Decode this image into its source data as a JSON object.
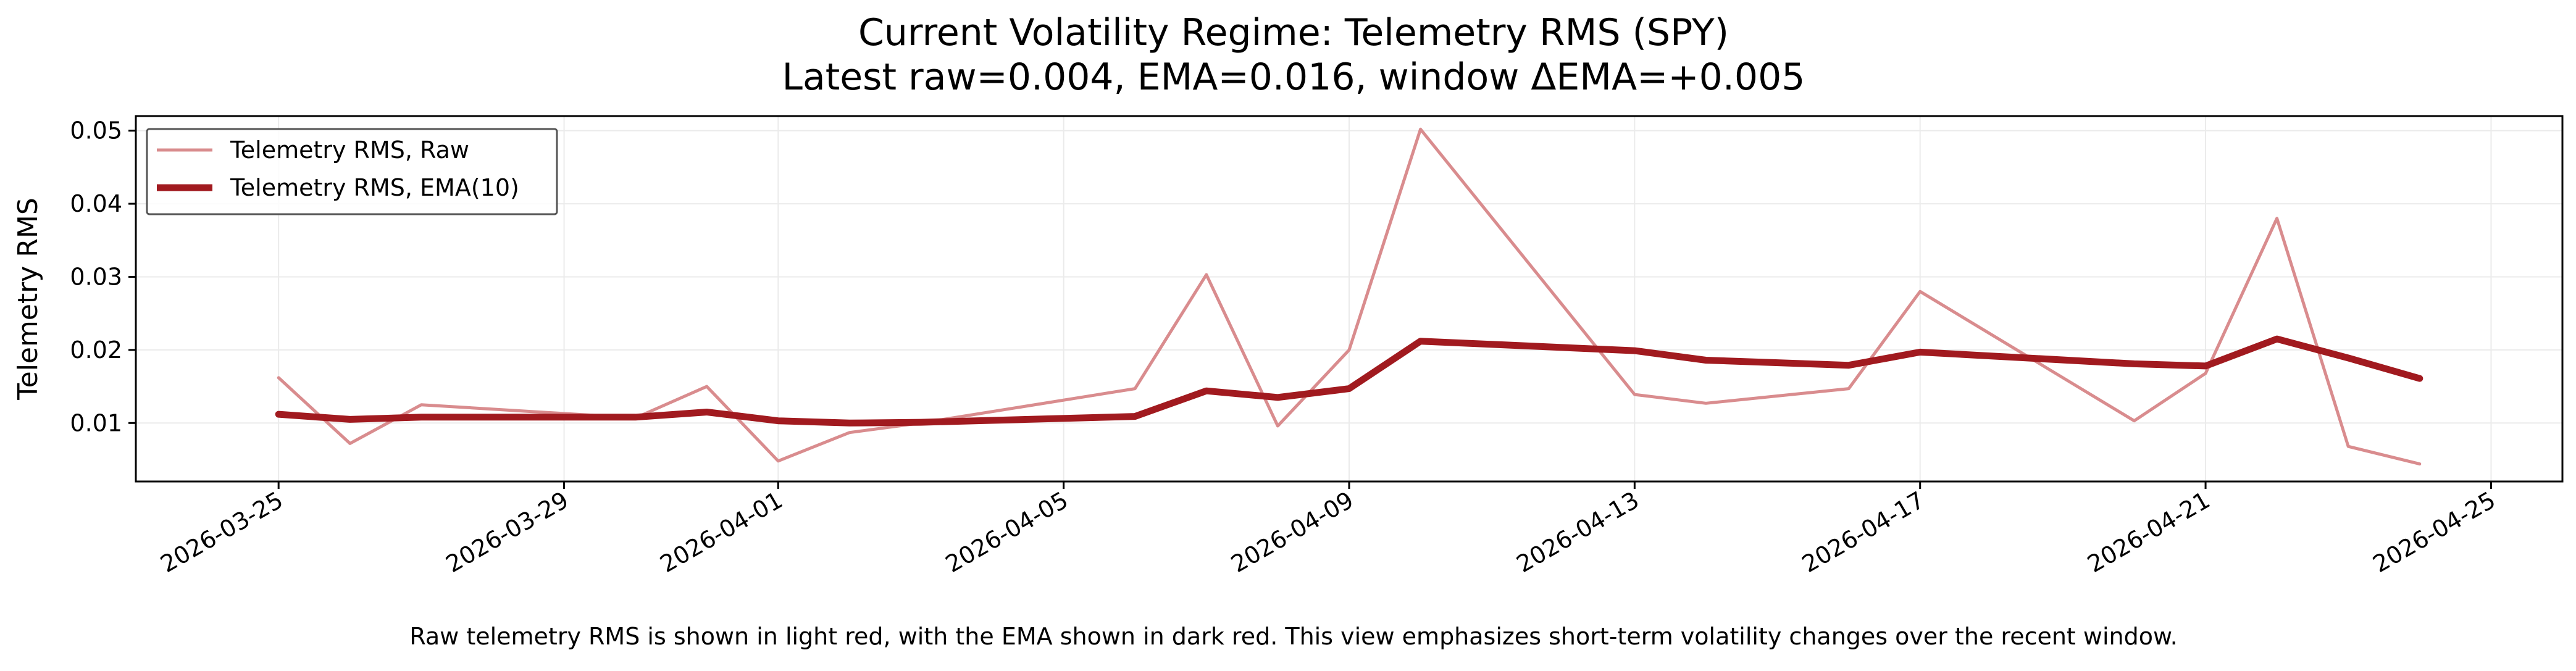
{
  "chart_data": {
    "type": "line",
    "title": "Current Volatility Regime: Telemetry RMS (SPY)",
    "subtitle": "Latest raw=0.004, EMA=0.016, window ΔEMA=+0.005",
    "xlabel": "",
    "ylabel": "Telemetry RMS",
    "caption": "Raw telemetry RMS is shown in light red, with the EMA shown in dark red. This view emphasizes short-term volatility changes over the recent window.",
    "x_axis_type": "date",
    "xlim": [
      "2026-03-23",
      "2026-04-26"
    ],
    "ylim": [
      0.002,
      0.052
    ],
    "x_ticks": [
      "2026-03-25",
      "2026-03-29",
      "2026-04-01",
      "2026-04-05",
      "2026-04-09",
      "2026-04-13",
      "2026-04-17",
      "2026-04-21",
      "2026-04-25"
    ],
    "y_ticks": [
      0.01,
      0.02,
      0.03,
      0.04,
      0.05
    ],
    "y_tick_labels": [
      "0.01",
      "0.02",
      "0.03",
      "0.04",
      "0.05"
    ],
    "grid": true,
    "legend_position": "top-left",
    "series": [
      {
        "name": "Telemetry RMS, Raw",
        "color": "#d98c8e",
        "points": [
          [
            "2026-03-25",
            0.0162
          ],
          [
            "2026-03-26",
            0.0072
          ],
          [
            "2026-03-27",
            0.0125
          ],
          [
            "2026-03-30",
            0.0107
          ],
          [
            "2026-03-31",
            0.015
          ],
          [
            "2026-04-01",
            0.0048
          ],
          [
            "2026-04-02",
            0.0087
          ],
          [
            "2026-04-03",
            0.01
          ],
          [
            "2026-04-06",
            0.0147
          ],
          [
            "2026-04-07",
            0.0303
          ],
          [
            "2026-04-08",
            0.0096
          ],
          [
            "2026-04-09",
            0.02
          ],
          [
            "2026-04-10",
            0.0502
          ],
          [
            "2026-04-13",
            0.0139
          ],
          [
            "2026-04-14",
            0.0127
          ],
          [
            "2026-04-16",
            0.0147
          ],
          [
            "2026-04-17",
            0.028
          ],
          [
            "2026-04-20",
            0.0103
          ],
          [
            "2026-04-21",
            0.0168
          ],
          [
            "2026-04-22",
            0.038
          ],
          [
            "2026-04-23",
            0.0068
          ],
          [
            "2026-04-24",
            0.0044
          ]
        ]
      },
      {
        "name": "Telemetry RMS, EMA(10)",
        "color": "#a11a1f",
        "points": [
          [
            "2026-03-25",
            0.0112
          ],
          [
            "2026-03-26",
            0.0105
          ],
          [
            "2026-03-27",
            0.0108
          ],
          [
            "2026-03-30",
            0.0108
          ],
          [
            "2026-03-31",
            0.0115
          ],
          [
            "2026-04-01",
            0.0103
          ],
          [
            "2026-04-02",
            0.01
          ],
          [
            "2026-04-03",
            0.0101
          ],
          [
            "2026-04-06",
            0.0109
          ],
          [
            "2026-04-07",
            0.0144
          ],
          [
            "2026-04-08",
            0.0135
          ],
          [
            "2026-04-09",
            0.0147
          ],
          [
            "2026-04-10",
            0.0212
          ],
          [
            "2026-04-13",
            0.0199
          ],
          [
            "2026-04-14",
            0.0186
          ],
          [
            "2026-04-16",
            0.0179
          ],
          [
            "2026-04-17",
            0.0197
          ],
          [
            "2026-04-20",
            0.0181
          ],
          [
            "2026-04-21",
            0.0178
          ],
          [
            "2026-04-22",
            0.0215
          ],
          [
            "2026-04-23",
            0.0189
          ],
          [
            "2026-04-24",
            0.0161
          ]
        ]
      }
    ],
    "colors": {
      "grid": "#ebebeb",
      "axis": "#000000",
      "legend_border": "#555555"
    }
  }
}
